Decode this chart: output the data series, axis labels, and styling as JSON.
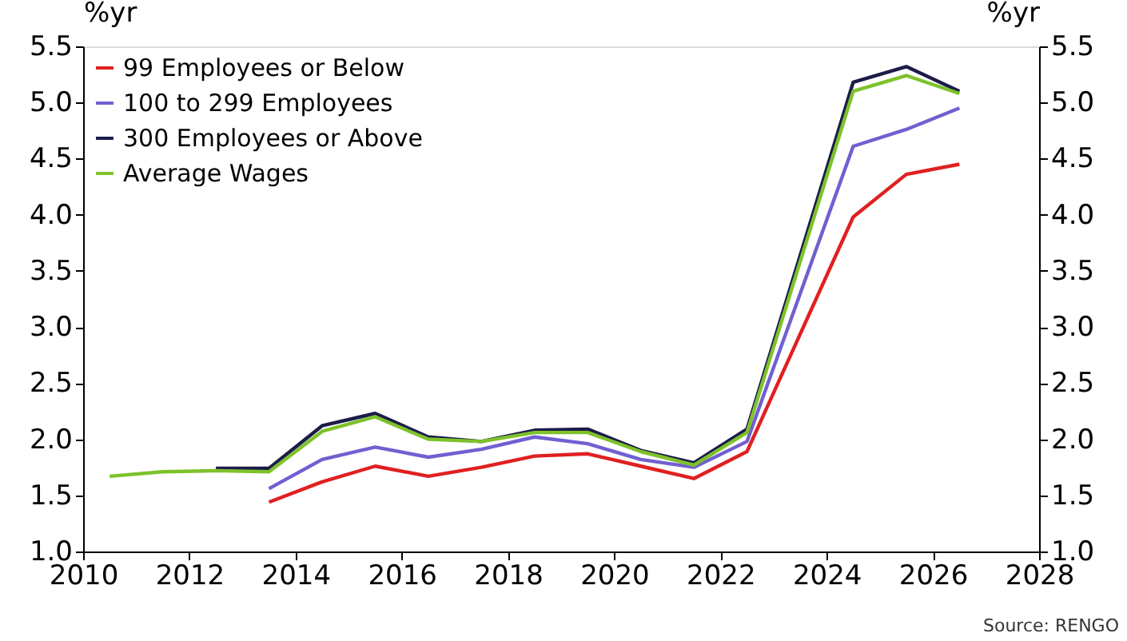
{
  "chart_data": {
    "type": "line",
    "ylabel": "%yr",
    "y2label": "%yr",
    "xlim": [
      2010,
      2028
    ],
    "xticks": [
      2010,
      2012,
      2014,
      2016,
      2018,
      2020,
      2022,
      2024,
      2026,
      2028
    ],
    "ylim": [
      1.0,
      5.5
    ],
    "yticks": [
      {
        "value": 1.0,
        "label": "1.0"
      },
      {
        "value": 1.5,
        "label": "1.5"
      },
      {
        "value": 2.0,
        "label": "2.0"
      },
      {
        "value": 2.5,
        "label": "2.5"
      },
      {
        "value": 3.0,
        "label": "3.0"
      },
      {
        "value": 3.5,
        "label": "3.5"
      },
      {
        "value": 4.0,
        "label": "4.0"
      },
      {
        "value": 4.5,
        "label": "4.5"
      },
      {
        "value": 5.0,
        "label": "5.0"
      },
      {
        "value": 5.5,
        "label": "5.5"
      }
    ],
    "y2lim": [
      1.0,
      5.5
    ],
    "y2ticks": [
      {
        "value": 1.0,
        "label": "1.0"
      },
      {
        "value": 1.5,
        "label": "1.5"
      },
      {
        "value": 2.0,
        "label": "2.0"
      },
      {
        "value": 2.5,
        "label": "2.5"
      },
      {
        "value": 3.0,
        "label": "3.0"
      },
      {
        "value": 3.5,
        "label": "3.5"
      },
      {
        "value": 4.0,
        "label": "4.0"
      },
      {
        "value": 4.5,
        "label": "4.5"
      },
      {
        "value": 5.0,
        "label": "5.0"
      },
      {
        "value": 5.5,
        "label": "5.5"
      }
    ],
    "grid": false,
    "legend": "top left",
    "marker": "none",
    "line_style": "solid",
    "series": [
      {
        "name": "99 Employees or Below",
        "color": "#e02020",
        "x": [
          2013.5,
          2014.5,
          2015.5,
          2016.5,
          2017.5,
          2018.5,
          2019.5,
          2020.5,
          2021.5,
          2022.5,
          2024.5,
          2025.5,
          2026.5
        ],
        "values": [
          1.44,
          1.62,
          1.76,
          1.67,
          1.75,
          1.85,
          1.87,
          1.76,
          1.65,
          1.89,
          3.98,
          4.36,
          4.45
        ]
      },
      {
        "name": "100 to 299 Employees",
        "color": "#7060d0",
        "x": [
          2013.5,
          2014.5,
          2015.5,
          2016.5,
          2017.5,
          2018.5,
          2019.5,
          2020.5,
          2021.5,
          2022.5,
          2024.5,
          2025.5,
          2026.5
        ],
        "values": [
          1.56,
          1.82,
          1.93,
          1.84,
          1.91,
          2.02,
          1.96,
          1.82,
          1.75,
          1.98,
          4.61,
          4.76,
          4.95
        ]
      },
      {
        "name": "300 Employees or Above",
        "color": "#1c1c4a",
        "x": [
          2012.5,
          2013.5,
          2014.5,
          2015.5,
          2016.5,
          2017.5,
          2018.5,
          2019.5,
          2020.5,
          2021.5,
          2022.5,
          2024.5,
          2025.5,
          2026.5
        ],
        "values": [
          1.74,
          1.74,
          2.12,
          2.23,
          2.02,
          1.98,
          2.08,
          2.09,
          1.9,
          1.79,
          2.09,
          5.18,
          5.32,
          5.1
        ]
      },
      {
        "name": "Average Wages",
        "color": "#7dc22a",
        "x": [
          2010.5,
          2011.5,
          2012.5,
          2013.5,
          2014.5,
          2015.5,
          2016.5,
          2017.5,
          2018.5,
          2019.5,
          2020.5,
          2021.5,
          2022.5,
          2024.5,
          2025.5,
          2026.5
        ],
        "values": [
          1.67,
          1.71,
          1.72,
          1.71,
          2.07,
          2.2,
          2.0,
          1.98,
          2.06,
          2.06,
          1.89,
          1.77,
          2.06,
          5.1,
          5.24,
          5.08
        ]
      }
    ],
    "annotations": [
      "Source: RENGO"
    ]
  }
}
